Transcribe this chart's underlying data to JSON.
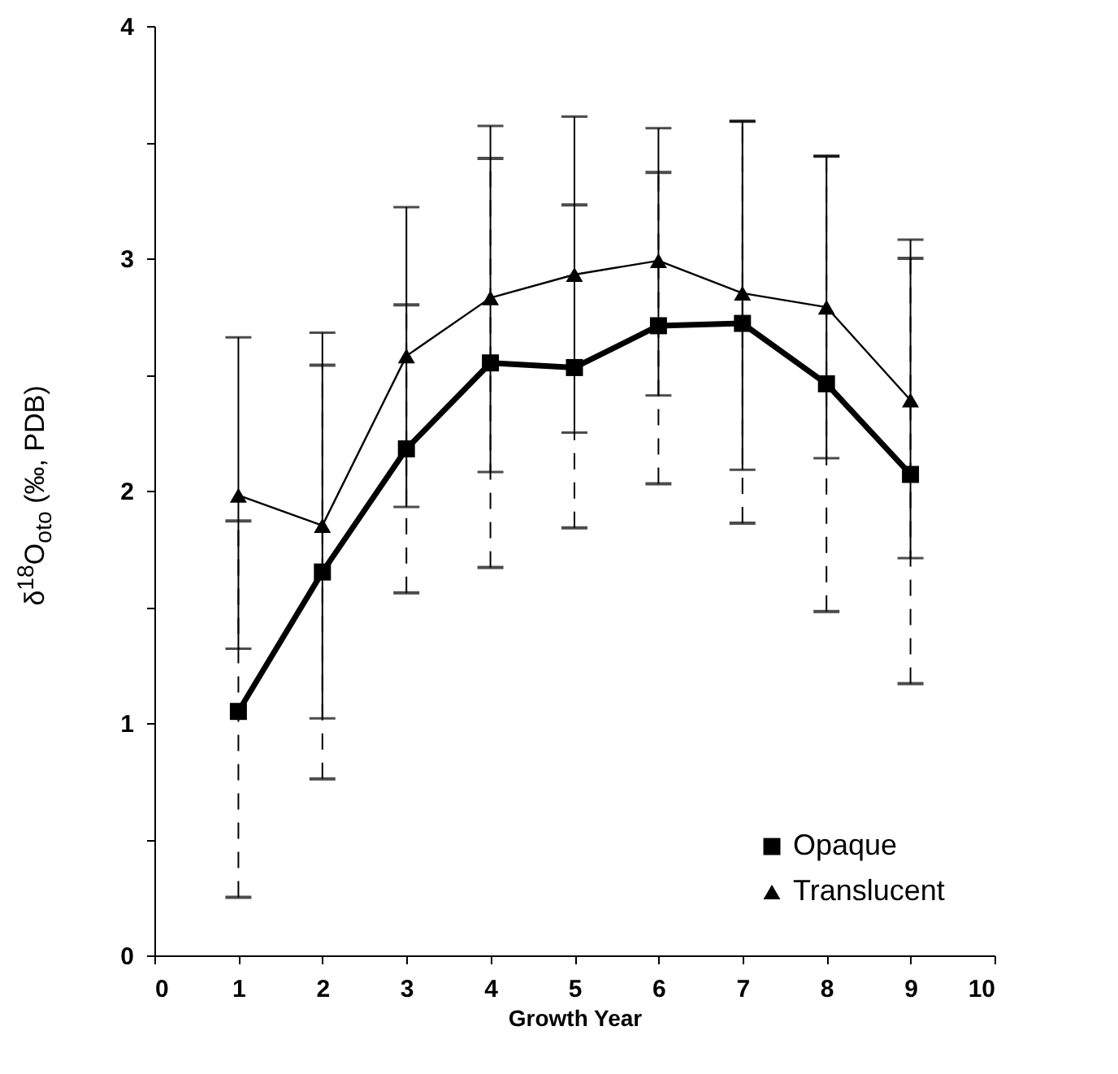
{
  "chart_data": {
    "type": "line",
    "xlabel": "Growth Year",
    "ylabel": "δ$^{18}$O$_{oto}$ (‰, PDB)",
    "x": [
      1,
      2,
      3,
      4,
      5,
      6,
      7,
      8,
      9
    ],
    "xlim": [
      0,
      10
    ],
    "xticks": [
      0,
      1,
      2,
      3,
      4,
      5,
      6,
      7,
      8,
      9,
      10
    ],
    "ylim": [
      0,
      4
    ],
    "yticks": [
      0,
      {
        "value": 0.5,
        "label": null
      },
      1,
      {
        "value": 1.5,
        "label": null
      },
      2,
      {
        "value": 2.5,
        "label": null
      },
      3,
      {
        "value": 3.5,
        "label": null
      },
      4
    ],
    "series": [
      {
        "name": "Opaque",
        "color": "#000000",
        "marker": "square",
        "line_style": "solid",
        "values": [
          1.05,
          1.65,
          2.18,
          2.55,
          2.53,
          2.71,
          2.72,
          2.46,
          2.07
        ],
        "errors": [
          [
            0.25,
            1.87
          ],
          [
            0.76,
            2.54
          ],
          [
            1.56,
            2.8
          ],
          [
            1.67,
            3.43
          ],
          [
            1.84,
            3.23
          ],
          [
            2.03,
            3.37
          ],
          [
            1.86,
            3.59
          ],
          [
            1.48,
            3.44
          ],
          [
            1.17,
            3.0
          ]
        ]
      },
      {
        "name": "Translucent",
        "color": "#000000",
        "marker": "triangle",
        "line_style": "solid",
        "values": [
          1.98,
          1.85,
          2.58,
          2.83,
          2.93,
          2.99,
          2.85,
          2.79,
          2.39
        ],
        "errors": [
          [
            1.32,
            2.66
          ],
          [
            1.02,
            2.68
          ],
          [
            1.93,
            3.22
          ],
          [
            2.08,
            3.57
          ],
          [
            2.25,
            3.61
          ],
          [
            2.41,
            3.56
          ],
          [
            2.09,
            3.59
          ],
          [
            2.14,
            3.44
          ],
          [
            1.71,
            3.08
          ]
        ]
      }
    ],
    "grid": false,
    "legend": "bottom right"
  }
}
